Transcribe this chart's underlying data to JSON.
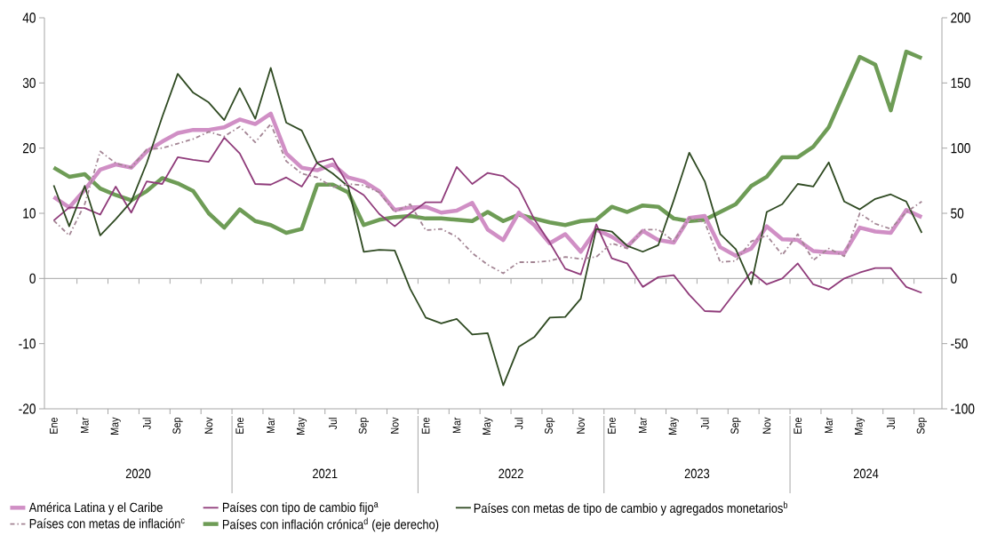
{
  "chart_data": {
    "type": "line",
    "categories": [
      "Ene",
      null,
      "Mar",
      null,
      "May",
      null,
      "Jul",
      null,
      "Sep",
      null,
      "Nov",
      null,
      "Ene",
      null,
      "Mar",
      null,
      "May",
      null,
      "Jul",
      null,
      "Sep",
      null,
      "Nov",
      null,
      "Ene",
      null,
      "Mar",
      null,
      "May",
      null,
      "Jul",
      null,
      "Sep",
      null,
      "Nov",
      null,
      "Ene",
      null,
      "Mar",
      null,
      "May",
      null,
      "Jul",
      null,
      "Sep",
      null,
      "Nov",
      null,
      "Ene",
      null,
      "Mar",
      null,
      "May",
      null,
      "Jul",
      null,
      "Sep"
    ],
    "annotations": [
      "2020",
      "2021",
      "2022",
      "2023",
      "2024"
    ],
    "ylim": [
      -20,
      40
    ],
    "yticks": [
      -20,
      -10,
      0,
      10,
      20,
      30,
      40
    ],
    "y2lim": [
      -100,
      200
    ],
    "y2ticks": [
      -100,
      -50,
      0,
      50,
      100,
      150,
      200
    ],
    "legend": "bottom",
    "series": [
      {
        "name": "América Latina y el Caribe",
        "color": "#d08fc5",
        "values": [
          12.5,
          10.9,
          13.6,
          16.7,
          17.5,
          17.0,
          19.5,
          21.0,
          22.3,
          22.8,
          22.8,
          23.2,
          24.4,
          23.7,
          25.3,
          19.2,
          17.0,
          16.6,
          17.5,
          15.5,
          14.9,
          13.4,
          10.5,
          10.9,
          11.0,
          10.1,
          10.4,
          11.6,
          7.5,
          5.9,
          10.1,
          8.2,
          5.4,
          6.8,
          4.1,
          7.5,
          6.4,
          4.9,
          7.3,
          5.9,
          5.5,
          9.3,
          9.6,
          4.8,
          3.5,
          4.6,
          8.0,
          6.0,
          5.9,
          4.2,
          4.0,
          3.9,
          7.8,
          7.2,
          7.0,
          10.5,
          9.4
        ]
      },
      {
        "name": "Países con tipo de cambio fijo$^{a}$",
        "color": "#8f3b7a",
        "values": [
          8.9,
          10.9,
          10.8,
          9.8,
          14.1,
          10.1,
          14.9,
          14.5,
          18.6,
          18.2,
          17.9,
          21.6,
          19.2,
          14.5,
          14.4,
          15.5,
          14.1,
          17.8,
          18.4,
          14.3,
          12.8,
          9.9,
          8.0,
          10.0,
          11.7,
          11.7,
          17.1,
          14.5,
          16.2,
          15.7,
          13.8,
          9.1,
          5.5,
          1.5,
          0.6,
          8.3,
          3.1,
          2.3,
          -1.3,
          0.2,
          0.5,
          -2.5,
          -5.0,
          -5.1,
          -2.0,
          1.0,
          -0.9,
          0,
          2.3,
          -0.9,
          -1.7,
          0,
          0.9,
          1.6,
          1.6,
          -1.3,
          -2.2
        ]
      },
      {
        "name": "Países con metas de tipo de cambio y agregados monetarios$^{b}$",
        "color": "#2f4a22",
        "values": [
          14.3,
          8.0,
          14.2,
          6.6,
          9.1,
          11.8,
          17.7,
          24.8,
          31.4,
          28.5,
          27.0,
          24.3,
          29.2,
          24.5,
          32.3,
          23.9,
          22.7,
          17.7,
          16.1,
          14.1,
          4.1,
          4.4,
          4.3,
          -1.6,
          -6.0,
          -6.9,
          -6.2,
          -8.6,
          -8.4,
          -16.4,
          -10.5,
          -9.0,
          -6.0,
          -5.9,
          -3.1,
          7.6,
          7.2,
          5.0,
          4.1,
          5.1,
          12.0,
          19.3,
          14.9,
          6.8,
          4.5,
          -0.9,
          10.2,
          11.4,
          14.5,
          14.1,
          17.8,
          11.8,
          10.6,
          12.2,
          12.9,
          11.8,
          7.0
        ]
      },
      {
        "name": "Países con metas de inflación$^{c}$",
        "color": "#a38594",
        "line_style": "dashed",
        "values": [
          8.9,
          6.6,
          11.4,
          19.5,
          17.7,
          17.0,
          19.8,
          20.0,
          20.7,
          21.4,
          22.5,
          21.8,
          23.3,
          20.9,
          23.7,
          18.0,
          16.1,
          15.5,
          14.0,
          14.5,
          14.3,
          13.2,
          10.2,
          11.4,
          7.4,
          7.6,
          6.4,
          3.9,
          2.1,
          0.8,
          2.5,
          2.5,
          2.7,
          3.3,
          3.0,
          3.3,
          5.4,
          4.6,
          7.5,
          7.5,
          5.7,
          9.3,
          8.6,
          2.5,
          2.7,
          5.7,
          6.6,
          3.6,
          6.8,
          2.8,
          4.6,
          3.4,
          10.0,
          8.4,
          7.6,
          10.2,
          11.8
        ]
      },
      {
        "name": "Países con inflación crónica$^{d}$ (eje derecho)",
        "color": "#6e9c56",
        "axis": "y2",
        "values": [
          85,
          78,
          80,
          69,
          64,
          60,
          67,
          77,
          73,
          67,
          50,
          39,
          53,
          44,
          41,
          35,
          38,
          72,
          72,
          66,
          41,
          45,
          47,
          48,
          46,
          46,
          45,
          44,
          51,
          44,
          49,
          46,
          43,
          41,
          44,
          45,
          55,
          51,
          56,
          55,
          46,
          44,
          45,
          51,
          57,
          71,
          78,
          93,
          93,
          101,
          116,
          143,
          170,
          164,
          129,
          174,
          169
        ]
      }
    ]
  }
}
